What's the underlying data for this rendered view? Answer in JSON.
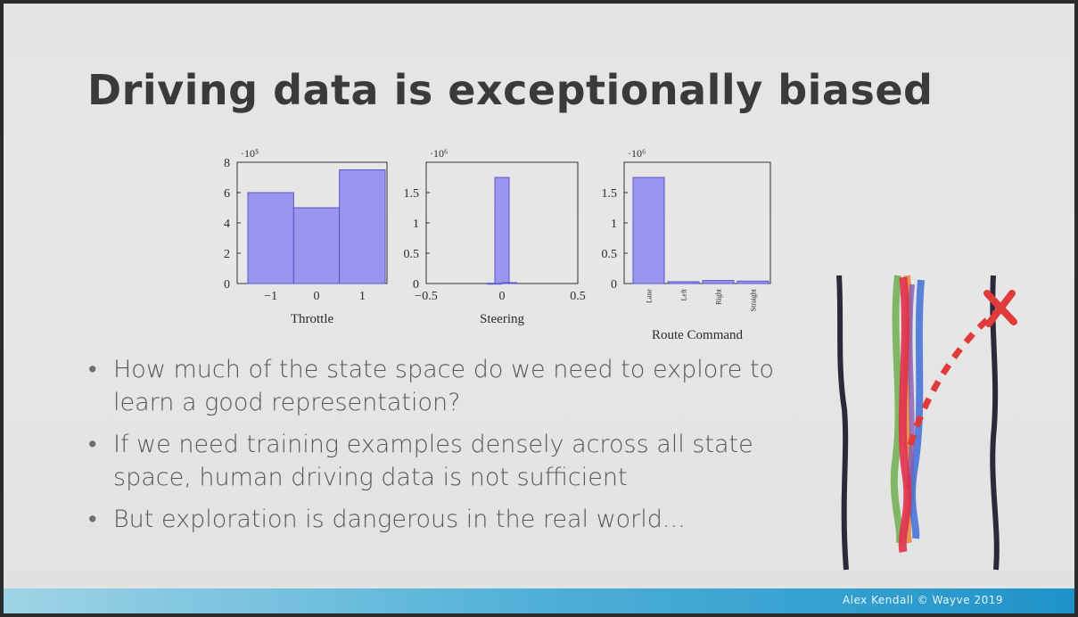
{
  "slide": {
    "title": "Driving data is exceptionally biased",
    "bullets": [
      "How much of the state space do we need to explore to learn a good representation?",
      "If we need training examples densely across all state space, human driving data is not sufficient",
      "But exploration is dangerous in the real world..."
    ],
    "footer": "Alex Kendall © Wayve 2019"
  },
  "colors": {
    "bar": "#9a95ee",
    "bar_stroke": "#5a55c8",
    "title": "#3a3a3c",
    "footer": "#1f93c9"
  },
  "chart_data": [
    {
      "type": "bar",
      "xlabel": "Throttle",
      "multiplier": "·10⁵",
      "categories": [
        "-1",
        "0",
        "1"
      ],
      "values": [
        600000,
        500000,
        750000
      ],
      "ylim": [
        0,
        800000
      ],
      "yticks": [
        0,
        2,
        4,
        6,
        8
      ],
      "xticks": [
        "−1",
        "0",
        "1"
      ]
    },
    {
      "type": "bar",
      "xlabel": "Steering",
      "multiplier": "·10⁶",
      "x": [
        -0.05,
        0,
        0.05
      ],
      "values": [
        5000,
        1750000,
        15000
      ],
      "xlim": [
        -0.5,
        0.5
      ],
      "ylim": [
        0,
        2000000
      ],
      "yticks": [
        "0",
        "0.5",
        "1",
        "1.5"
      ],
      "xticks": [
        "−0.5",
        "0",
        "0.5"
      ]
    },
    {
      "type": "bar",
      "xlabel": "Route Command",
      "multiplier": "·10⁶",
      "categories": [
        "Lane",
        "Left",
        "Right",
        "Straight"
      ],
      "values": [
        1750000,
        30000,
        50000,
        40000
      ],
      "ylim": [
        0,
        2000000
      ],
      "yticks": [
        "0",
        "0.5",
        "1",
        "1.5"
      ]
    }
  ]
}
